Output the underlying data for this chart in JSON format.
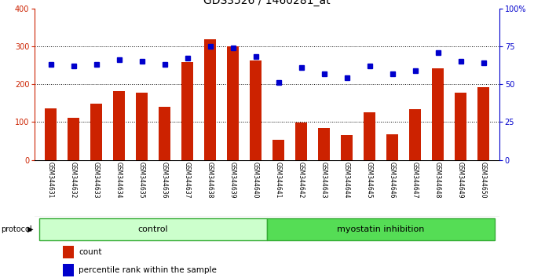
{
  "title": "GDS3526 / 1460281_at",
  "categories": [
    "GSM344631",
    "GSM344632",
    "GSM344633",
    "GSM344634",
    "GSM344635",
    "GSM344636",
    "GSM344637",
    "GSM344638",
    "GSM344639",
    "GSM344640",
    "GSM344641",
    "GSM344642",
    "GSM344643",
    "GSM344644",
    "GSM344645",
    "GSM344646",
    "GSM344647",
    "GSM344648",
    "GSM344649",
    "GSM344650"
  ],
  "bar_values": [
    135,
    110,
    148,
    182,
    178,
    140,
    258,
    318,
    300,
    262,
    52,
    98,
    85,
    65,
    125,
    68,
    133,
    242,
    178,
    192
  ],
  "percentile_values": [
    63,
    62,
    63,
    66,
    65,
    63,
    67,
    75,
    74,
    68,
    51,
    61,
    57,
    54,
    62,
    57,
    59,
    71,
    65,
    64
  ],
  "bar_color": "#cc2200",
  "dot_color": "#0000cc",
  "left_ylim": [
    0,
    400
  ],
  "right_ylim": [
    0,
    100
  ],
  "left_yticks": [
    0,
    100,
    200,
    300,
    400
  ],
  "right_yticks": [
    0,
    25,
    50,
    75,
    100
  ],
  "right_yticklabels": [
    "0",
    "25",
    "50",
    "75",
    "100%"
  ],
  "grid_values": [
    100,
    200,
    300
  ],
  "n_control": 10,
  "n_myostatin": 10,
  "control_label": "control",
  "myostatin_label": "myostatin inhibition",
  "protocol_label": "protocol",
  "legend_count_label": "count",
  "legend_percentile_label": "percentile rank within the sample",
  "bg_plot": "#ffffff",
  "bg_tick_area": "#cccccc",
  "control_color": "#ccffcc",
  "myostatin_color": "#55dd55",
  "title_fontsize": 10,
  "tick_fontsize": 7,
  "label_fontsize": 7.5
}
